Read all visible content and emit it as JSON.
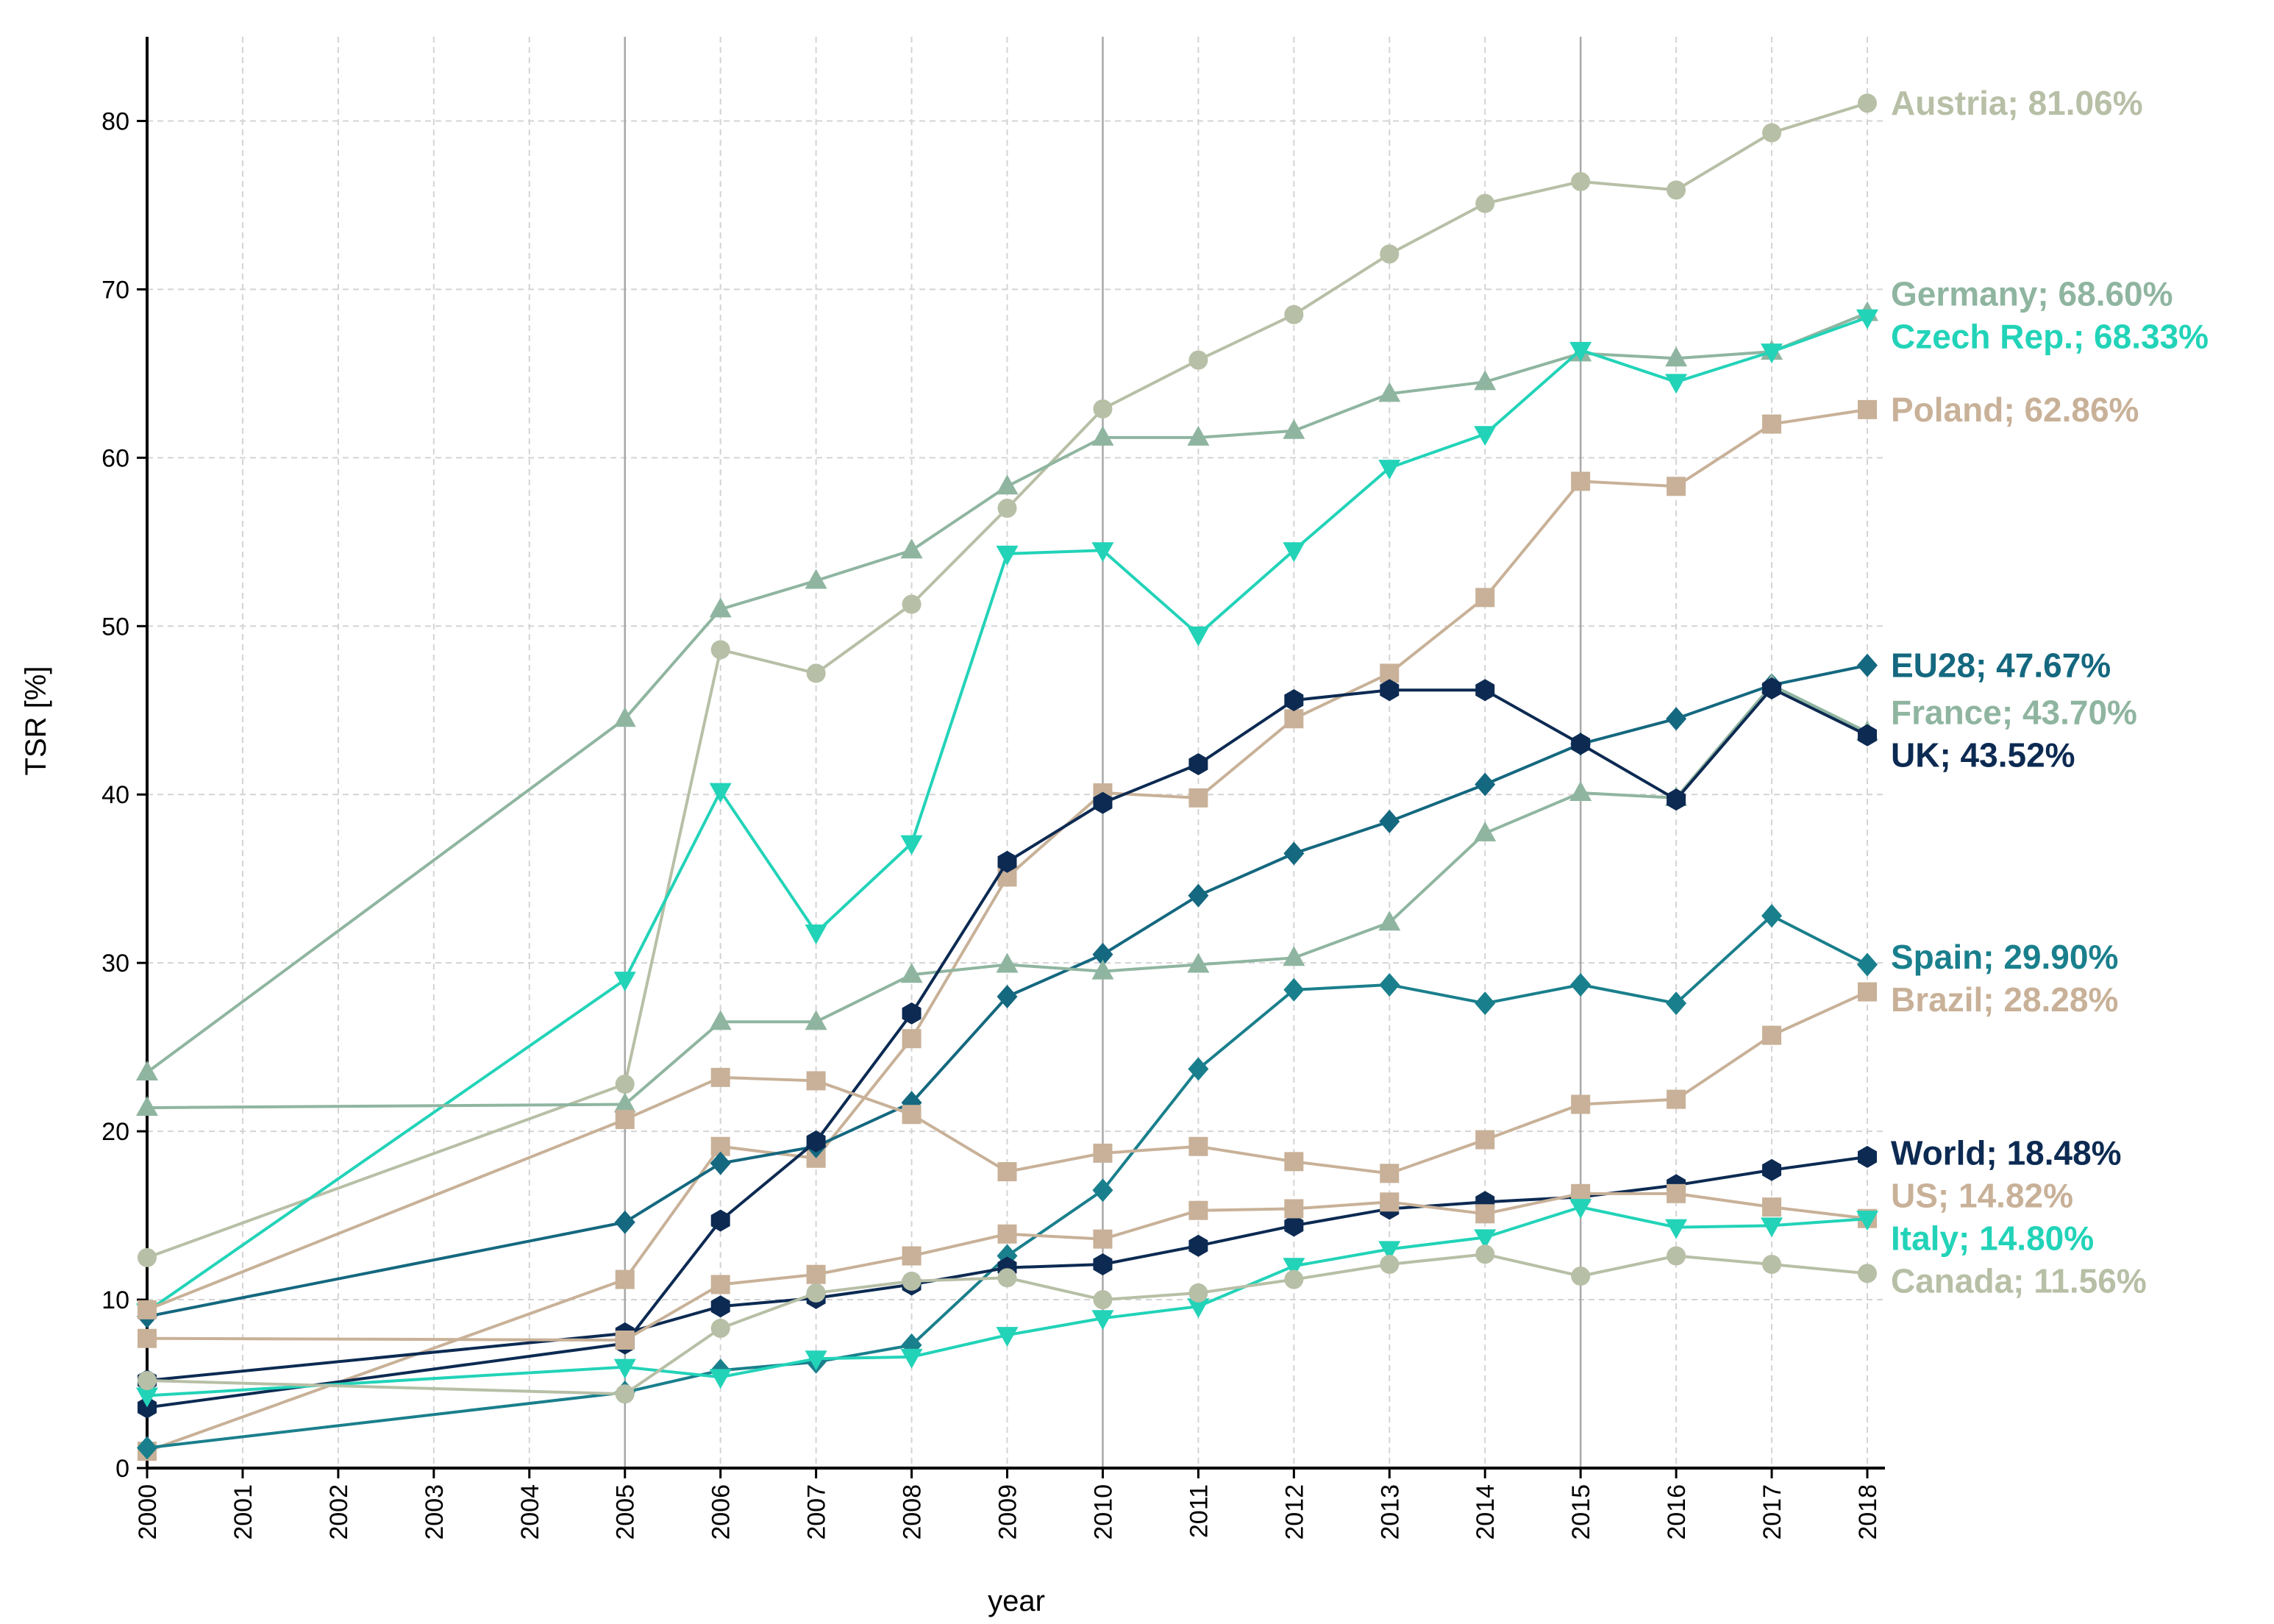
{
  "chart_data": {
    "type": "line",
    "xlabel": "year",
    "ylabel": "TSR [%]",
    "x": [
      2000,
      2005,
      2006,
      2007,
      2008,
      2009,
      2010,
      2011,
      2012,
      2013,
      2014,
      2015,
      2016,
      2017,
      2018
    ],
    "xlim": [
      2000,
      2018
    ],
    "xticks": [
      2000,
      2001,
      2002,
      2003,
      2004,
      2005,
      2006,
      2007,
      2008,
      2009,
      2010,
      2011,
      2012,
      2013,
      2014,
      2015,
      2016,
      2017,
      2018
    ],
    "ylim": [
      0,
      85
    ],
    "yticks": [
      0,
      10,
      20,
      30,
      40,
      50,
      60,
      70,
      80
    ],
    "grid": true,
    "vlines": [
      2005,
      2010,
      2015
    ],
    "series": [
      {
        "name": "Austria; 81.06%",
        "color": "#b7bfa6",
        "marker": "circle",
        "values": [
          12.5,
          22.8,
          48.6,
          47.2,
          51.3,
          57.0,
          62.9,
          65.8,
          68.5,
          72.1,
          75.1,
          76.4,
          75.9,
          79.3,
          81.06
        ]
      },
      {
        "name": "Germany; 68.60%",
        "color": "#8fb5a0",
        "marker": "triangle-up",
        "values": [
          23.5,
          44.5,
          51.0,
          52.7,
          54.5,
          58.3,
          61.2,
          61.2,
          61.6,
          63.8,
          64.5,
          66.2,
          65.9,
          66.3,
          68.6
        ]
      },
      {
        "name": "Czech Rep.; 68.33%",
        "color": "#22d3b8",
        "marker": "triangle-down",
        "values": [
          9.3,
          29.0,
          40.2,
          31.8,
          37.1,
          54.3,
          54.5,
          49.5,
          54.5,
          59.4,
          61.4,
          66.4,
          64.5,
          66.3,
          68.33
        ]
      },
      {
        "name": "Poland; 62.86%",
        "color": "#c8b198",
        "marker": "square",
        "values": [
          1.0,
          11.2,
          19.1,
          18.4,
          25.5,
          35.1,
          40.1,
          39.8,
          44.5,
          47.2,
          51.7,
          58.6,
          58.3,
          62.0,
          62.86
        ]
      },
      {
        "name": "EU28; 47.67%",
        "color": "#14687f",
        "marker": "diamond",
        "values": [
          9.0,
          14.6,
          18.1,
          19.1,
          21.7,
          28.0,
          30.5,
          34.0,
          36.5,
          38.4,
          40.6,
          43.0,
          44.5,
          46.5,
          47.67
        ]
      },
      {
        "name": "France; 43.70%",
        "color": "#8fb5a0",
        "marker": "triangle-up",
        "values": [
          21.4,
          21.6,
          26.5,
          26.5,
          29.3,
          29.9,
          29.5,
          29.9,
          30.3,
          32.4,
          37.7,
          40.1,
          39.8,
          46.5,
          43.7
        ]
      },
      {
        "name": "UK; 43.52%",
        "color": "#0c2a52",
        "marker": "hexagon",
        "values": [
          3.6,
          7.4,
          14.7,
          19.4,
          27.0,
          36.0,
          39.5,
          41.8,
          45.6,
          46.2,
          46.2,
          43.0,
          39.7,
          46.3,
          43.52
        ]
      },
      {
        "name": "Spain; 29.90%",
        "color": "#1a7f8c",
        "marker": "diamond",
        "values": [
          1.2,
          4.5,
          5.8,
          6.3,
          7.3,
          12.6,
          16.5,
          23.7,
          28.4,
          28.7,
          27.6,
          28.7,
          27.6,
          32.8,
          29.9
        ]
      },
      {
        "name": "Brazil; 28.28%",
        "color": "#c8b198",
        "marker": "square",
        "values": [
          9.4,
          20.7,
          23.2,
          23.0,
          21.0,
          17.6,
          18.7,
          19.1,
          18.2,
          17.5,
          19.5,
          21.6,
          21.9,
          25.7,
          28.28
        ]
      },
      {
        "name": "World; 18.48%",
        "color": "#0c2a52",
        "marker": "hexagon",
        "values": [
          5.2,
          8.0,
          9.6,
          10.1,
          10.9,
          11.9,
          12.1,
          13.2,
          14.4,
          15.4,
          15.8,
          16.1,
          16.8,
          17.7,
          18.48
        ]
      },
      {
        "name": "US; 14.82%",
        "color": "#c8b198",
        "marker": "square",
        "values": [
          7.7,
          7.6,
          10.9,
          11.5,
          12.6,
          13.9,
          13.6,
          15.3,
          15.4,
          15.8,
          15.1,
          16.3,
          16.3,
          15.5,
          14.82
        ]
      },
      {
        "name": "Italy; 14.80%",
        "color": "#22d3b8",
        "marker": "triangle-down",
        "values": [
          4.3,
          6.0,
          5.4,
          6.5,
          6.6,
          7.9,
          8.9,
          9.6,
          12.0,
          13.0,
          13.7,
          15.5,
          14.3,
          14.4,
          14.8
        ]
      },
      {
        "name": "Canada; 11.56%",
        "color": "#b7bfa6",
        "marker": "circle",
        "values": [
          5.2,
          4.4,
          8.3,
          10.4,
          11.1,
          11.3,
          10.0,
          10.4,
          11.2,
          12.1,
          12.7,
          11.4,
          12.6,
          12.1,
          11.56
        ]
      }
    ]
  }
}
